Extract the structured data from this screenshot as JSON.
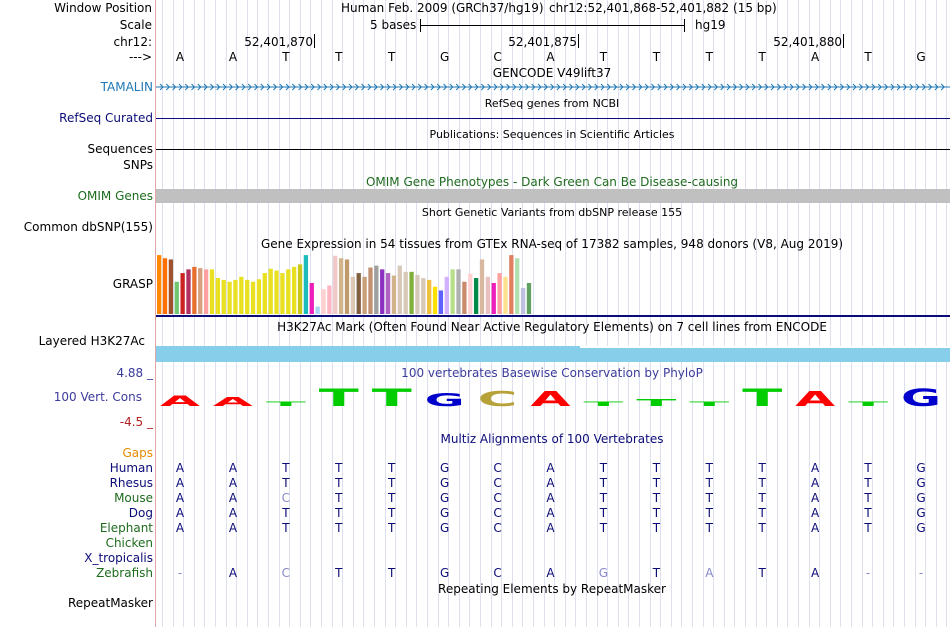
{
  "header": {
    "window_position_label": "Window Position",
    "assembly": "Human Feb. 2009 (GRCh37/hg19)",
    "position": "chr12:52,401,868-52,401,882 (15 bp)",
    "scale_label": "Scale",
    "scale_text": "5 bases",
    "scale_db": "hg19",
    "chrom_label": "chr12:",
    "coords": [
      "52,401,870",
      "52,401,875",
      "52,401,880"
    ],
    "arrow_label": "--->"
  },
  "sequence": [
    "A",
    "A",
    "T",
    "T",
    "T",
    "G",
    "C",
    "A",
    "T",
    "T",
    "T",
    "T",
    "A",
    "T",
    "G"
  ],
  "tracks": {
    "tamalin": {
      "label": "TAMALIN",
      "center": "GENCODE V49lift37",
      "color": "#1f77b4"
    },
    "refseq": {
      "label": "RefSeq Curated",
      "center": "RefSeq genes from NCBI",
      "color": "#0c0c78"
    },
    "publications": {
      "center": "Publications: Sequences in Scientific Articles"
    },
    "sequences": {
      "label": "Sequences"
    },
    "snps": {
      "label": "SNPs"
    },
    "omim": {
      "label": "OMIM Genes",
      "center": "OMIM Gene Phenotypes - Dark Green Can Be Disease-causing",
      "color": "#1e6b1e"
    },
    "dbsnp": {
      "label": "Common dbSNP(155)",
      "center": "Short Genetic Variants from dbSNP release 155"
    },
    "gtex": {
      "label": "GRASP",
      "center": "Gene Expression in 54 tissues from GTEx RNA-seq of 17382 samples, 948 donors (V8, Aug 2019)"
    },
    "h3k27ac": {
      "label": "Layered H3K27Ac",
      "center": "H3K27Ac Mark (Often Found Near Active Regulatory Elements) on 7 cell lines from ENCODE"
    },
    "phylop": {
      "label": "100 Vert. Cons",
      "center": "100 vertebrates Basewise Conservation by PhyloP",
      "max": "4.88 _",
      "min": "-4.5 _",
      "color": "#3b3b9c"
    },
    "multiz": {
      "center": "Multiz Alignments of 100 Vertebrates",
      "gaps_label": "Gaps"
    },
    "repeatmasker": {
      "label": "RepeatMasker",
      "center": "Repeating Elements by RepeatMasker"
    }
  },
  "gtex_values": [
    95,
    90,
    88,
    52,
    66,
    72,
    76,
    74,
    72,
    72,
    58,
    55,
    52,
    55,
    60,
    55,
    52,
    56,
    66,
    73,
    70,
    66,
    72,
    76,
    80,
    95,
    50,
    12,
    40,
    46,
    94,
    90,
    88,
    60,
    66,
    60,
    75,
    78,
    72,
    66,
    62,
    78,
    68,
    68,
    63,
    58,
    55,
    44,
    38,
    60,
    72,
    72,
    52,
    65,
    58,
    88,
    60,
    50,
    66,
    60,
    95,
    90,
    42,
    50
  ],
  "gtex_colors": [
    "#ff8800",
    "#ff7000",
    "#a0522d",
    "#71c671",
    "#cc2222",
    "#b03060",
    "#e76f2e",
    "#d8a080",
    "#ffa0a0",
    "#e8e020",
    "#e8e020",
    "#e8e020",
    "#e8e020",
    "#e8e020",
    "#e8e020",
    "#e8e020",
    "#e8e020",
    "#e8e020",
    "#e8e020",
    "#e8e020",
    "#e8e020",
    "#e8e020",
    "#e8e020",
    "#e8e020",
    "#c8c81a",
    "#1dbcbc",
    "#ee1ebb",
    "#aad4f0",
    "#ffd0d0",
    "#ffb6c1",
    "#f0c8c8",
    "#d2b48c",
    "#c09a6b",
    "#dcc8b4",
    "#806040",
    "#c8a078",
    "#c09070",
    "#a0a0a0",
    "#8b2fc0",
    "#b060c0",
    "#d2b48c",
    "#d8c8b8",
    "#d8c8b8",
    "#7fb03a",
    "#d8c8b8",
    "#d8c8b8",
    "#f0c040",
    "#ffe000",
    "#6060ff",
    "#d0b0ff",
    "#b8e08a",
    "#b0b0b0",
    "#c88a6a",
    "#ffd0d0",
    "#008a4a",
    "#d8b8a0",
    "#e8c0c0",
    "#ee1ebb",
    "#ffa0a0",
    "#ffe090",
    "#e08060",
    "#b0e0b0",
    "#c0c0e0",
    "#60a060"
  ],
  "phylop": [
    {
      "base": "A",
      "color": "#ff0000",
      "h": 14
    },
    {
      "base": "A",
      "color": "#ff0000",
      "h": 12
    },
    {
      "base": "T",
      "color": "#00cc00",
      "h": 6
    },
    {
      "base": "T",
      "color": "#00cc00",
      "h": 24
    },
    {
      "base": "T",
      "color": "#00cc00",
      "h": 24
    },
    {
      "base": "G",
      "color": "#0000cc",
      "h": 18
    },
    {
      "base": "C",
      "color": "#b7a23a",
      "h": 20
    },
    {
      "base": "A",
      "color": "#ff0000",
      "h": 20
    },
    {
      "base": "T",
      "color": "#00cc00",
      "h": 6
    },
    {
      "base": "T",
      "color": "#00cc00",
      "h": 10
    },
    {
      "base": "T",
      "color": "#00cc00",
      "h": 6
    },
    {
      "base": "T",
      "color": "#00cc00",
      "h": 24
    },
    {
      "base": "A",
      "color": "#ff0000",
      "h": 20
    },
    {
      "base": "T",
      "color": "#00cc00",
      "h": 6
    },
    {
      "base": "G",
      "color": "#0000cc",
      "h": 24
    }
  ],
  "species": [
    {
      "name": "Human",
      "color": "#0c0c78",
      "seq": [
        "A",
        "A",
        "T",
        "T",
        "T",
        "G",
        "C",
        "A",
        "T",
        "T",
        "T",
        "T",
        "A",
        "T",
        "G"
      ],
      "dim": []
    },
    {
      "name": "Rhesus",
      "color": "#0c0c78",
      "seq": [
        "A",
        "A",
        "T",
        "T",
        "T",
        "G",
        "C",
        "A",
        "T",
        "T",
        "T",
        "T",
        "A",
        "T",
        "G"
      ],
      "dim": []
    },
    {
      "name": "Mouse",
      "color": "#1e6b1e",
      "seq": [
        "A",
        "A",
        "C",
        "T",
        "T",
        "G",
        "C",
        "A",
        "T",
        "T",
        "T",
        "T",
        "A",
        "T",
        "G"
      ],
      "dim": [
        2
      ]
    },
    {
      "name": "Dog",
      "color": "#0c0c78",
      "seq": [
        "A",
        "A",
        "T",
        "T",
        "T",
        "G",
        "C",
        "A",
        "T",
        "T",
        "T",
        "T",
        "A",
        "T",
        "G"
      ],
      "dim": []
    },
    {
      "name": "Elephant",
      "color": "#1e6b1e",
      "seq": [
        "A",
        "A",
        "T",
        "T",
        "T",
        "G",
        "C",
        "A",
        "T",
        "T",
        "T",
        "T",
        "A",
        "T",
        "G"
      ],
      "dim": []
    },
    {
      "name": "Chicken",
      "color": "#1e6b1e",
      "seq": [],
      "dim": []
    },
    {
      "name": "X_tropicalis",
      "color": "#0c0c78",
      "seq": [],
      "dim": []
    },
    {
      "name": "Zebrafish",
      "color": "#1e6b1e",
      "seq": [
        "-",
        "A",
        "C",
        "T",
        "T",
        "G",
        "C",
        "A",
        "G",
        "T",
        "A",
        "T",
        "A",
        "-",
        "-"
      ],
      "dim": [
        0,
        2,
        8,
        10,
        13,
        14
      ]
    }
  ]
}
